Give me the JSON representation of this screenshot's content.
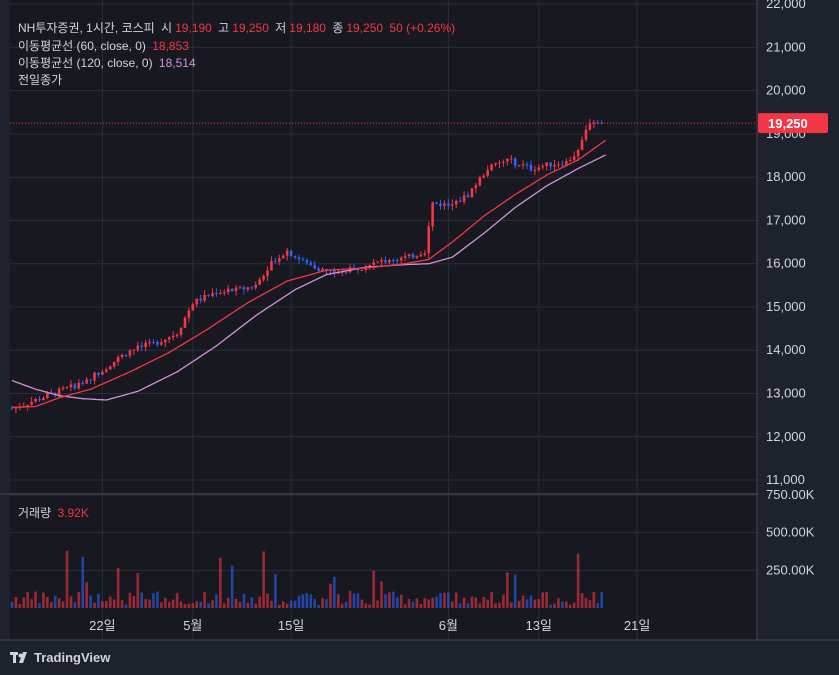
{
  "header": {
    "symbol": "NH투자증권, 1시간, 코스피",
    "open_label": "시",
    "open": "19,190",
    "high_label": "고",
    "high": "19,250",
    "low_label": "저",
    "low": "19,180",
    "close_label": "종",
    "close": "19,250",
    "change": "50 (+0.26%)"
  },
  "indicators": [
    {
      "label": "이동평균선 (60, close, 0)",
      "value": "18,853",
      "color": "#f23645"
    },
    {
      "label": "이동평균선 (120, close, 0)",
      "value": "18,514",
      "color": "#ce93d8"
    }
  ],
  "prev_close_label": "전일종가",
  "volume_pane": {
    "label": "거래량",
    "value": "3.92K"
  },
  "price_badge": "19,250",
  "brand": "TradingView",
  "chart_data": {
    "type": "candlestick",
    "y_ticks": [
      "22,000",
      "21,000",
      "20,000",
      "19,000",
      "18,000",
      "17,000",
      "16,000",
      "15,000",
      "14,000",
      "13,000",
      "12,000",
      "11,000"
    ],
    "y_tick_values": [
      22000,
      21000,
      20000,
      19000,
      18000,
      17000,
      16000,
      15000,
      14000,
      13000,
      12000,
      11000
    ],
    "ylim": [
      10700,
      22050
    ],
    "volume_ticks": [
      "750.00K",
      "500.00K",
      "250.00K"
    ],
    "volume_tick_values": [
      750000,
      500000,
      250000
    ],
    "volume_ylim": [
      0,
      750000
    ],
    "x_ticks": [
      "22일",
      "5월",
      "15일",
      "6월",
      "13일",
      "21일"
    ],
    "x_tick_index": [
      23,
      46,
      71,
      111,
      134,
      159
    ],
    "n_bars": 190,
    "close_path": [
      [
        0,
        12650
      ],
      [
        6,
        12850
      ],
      [
        12,
        13050
      ],
      [
        18,
        13250
      ],
      [
        23,
        13550
      ],
      [
        30,
        14000
      ],
      [
        36,
        14150
      ],
      [
        42,
        14400
      ],
      [
        46,
        15100
      ],
      [
        52,
        15350
      ],
      [
        58,
        15400
      ],
      [
        62,
        15500
      ],
      [
        66,
        16050
      ],
      [
        70,
        16300
      ],
      [
        74,
        16050
      ],
      [
        79,
        15850
      ],
      [
        84,
        15800
      ],
      [
        90,
        15950
      ],
      [
        96,
        16100
      ],
      [
        101,
        16150
      ],
      [
        105,
        16300
      ],
      [
        107,
        17400
      ],
      [
        112,
        17350
      ],
      [
        116,
        17600
      ],
      [
        121,
        18200
      ],
      [
        126,
        18400
      ],
      [
        132,
        18200
      ],
      [
        137,
        18300
      ],
      [
        141,
        18350
      ],
      [
        144,
        18600
      ],
      [
        147,
        19300
      ],
      [
        150,
        19250
      ]
    ],
    "last_close": 19250,
    "ma60": [
      [
        0,
        12680
      ],
      [
        6,
        12700
      ],
      [
        12,
        12900
      ],
      [
        20,
        13100
      ],
      [
        30,
        13500
      ],
      [
        40,
        13950
      ],
      [
        50,
        14500
      ],
      [
        60,
        15100
      ],
      [
        70,
        15600
      ],
      [
        80,
        15850
      ],
      [
        90,
        15900
      ],
      [
        100,
        16000
      ],
      [
        106,
        16100
      ],
      [
        112,
        16500
      ],
      [
        120,
        17100
      ],
      [
        128,
        17600
      ],
      [
        136,
        18050
      ],
      [
        144,
        18400
      ],
      [
        151,
        18853
      ]
    ],
    "ma120": [
      [
        0,
        13300
      ],
      [
        6,
        13100
      ],
      [
        12,
        12950
      ],
      [
        18,
        12880
      ],
      [
        24,
        12850
      ],
      [
        32,
        13050
      ],
      [
        42,
        13500
      ],
      [
        52,
        14100
      ],
      [
        62,
        14800
      ],
      [
        72,
        15400
      ],
      [
        80,
        15750
      ],
      [
        90,
        15920
      ],
      [
        100,
        15980
      ],
      [
        106,
        16000
      ],
      [
        112,
        16150
      ],
      [
        120,
        16700
      ],
      [
        128,
        17300
      ],
      [
        136,
        17800
      ],
      [
        144,
        18200
      ],
      [
        151,
        18514
      ]
    ]
  }
}
